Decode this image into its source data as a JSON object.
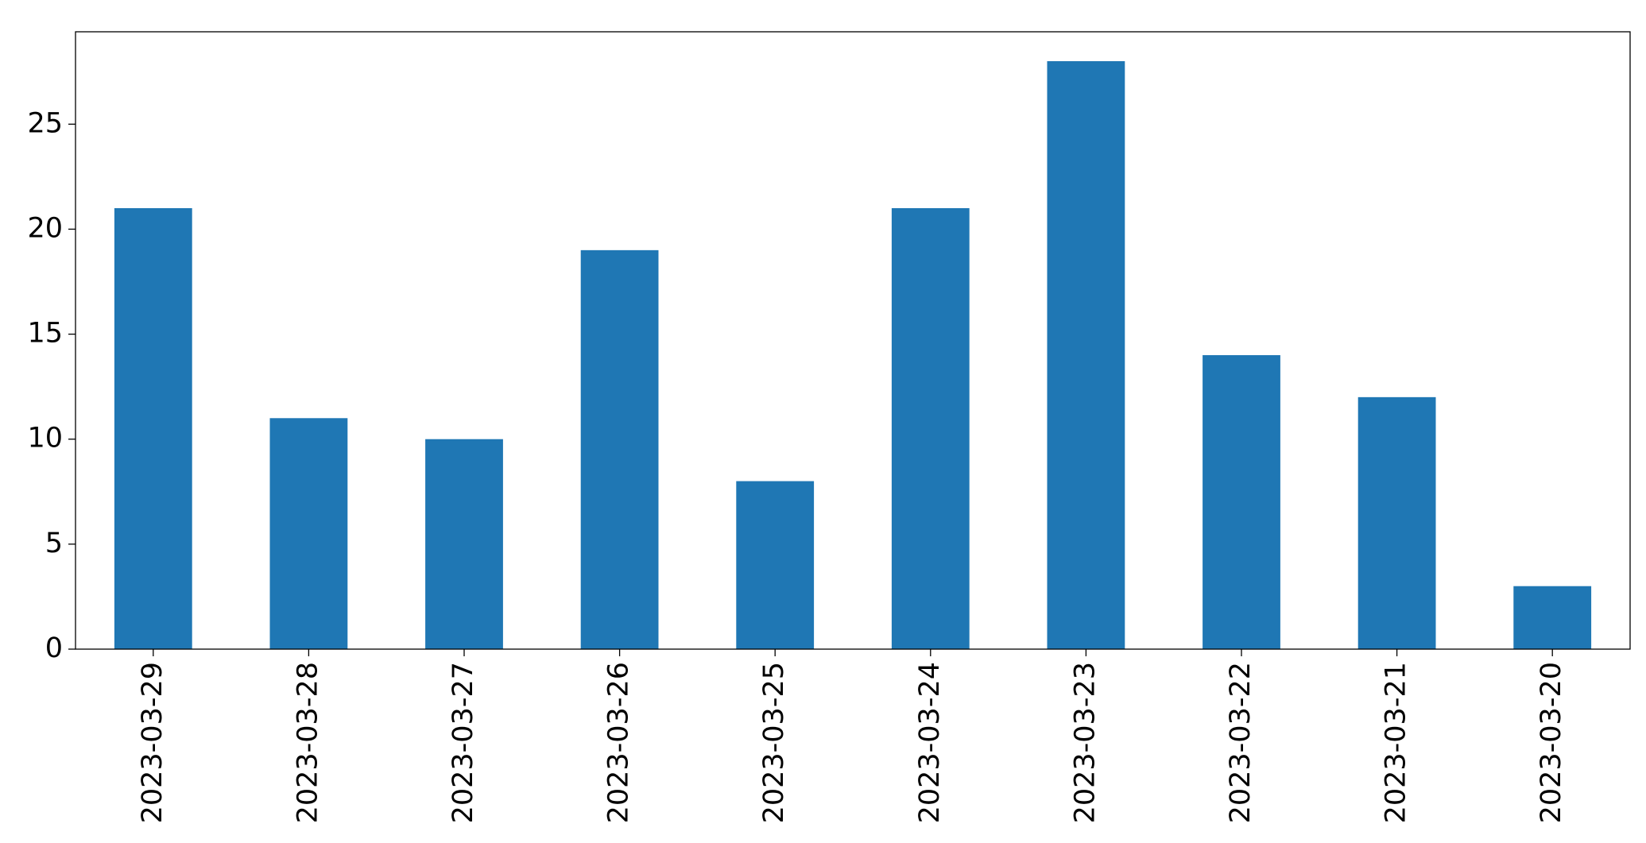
{
  "chart_data": {
    "type": "bar",
    "categories": [
      "2023-03-29",
      "2023-03-28",
      "2023-03-27",
      "2023-03-26",
      "2023-03-25",
      "2023-03-24",
      "2023-03-23",
      "2023-03-22",
      "2023-03-21",
      "2023-03-20"
    ],
    "values": [
      21,
      11,
      10,
      19,
      8,
      21,
      28,
      14,
      12,
      3
    ],
    "color": "#1f77b4",
    "ylim": [
      0,
      29.4
    ],
    "yticks": [
      0,
      5,
      10,
      15,
      20,
      25
    ],
    "grid": false
  }
}
